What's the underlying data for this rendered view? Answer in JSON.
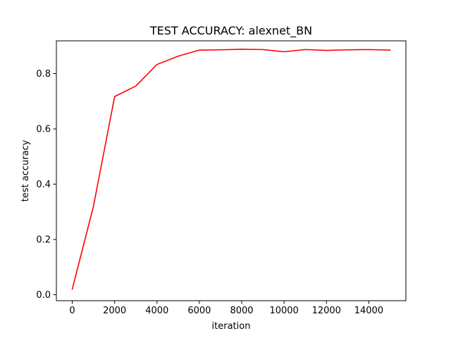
{
  "chart_data": {
    "type": "line",
    "title": "TEST ACCURACY: alexnet_BN",
    "xlabel": "iteration",
    "ylabel": "test accuracy",
    "xlim": [
      -750,
      15750
    ],
    "ylim": [
      -0.0215,
      0.9185
    ],
    "xticks": [
      0,
      2000,
      4000,
      6000,
      8000,
      10000,
      12000,
      14000
    ],
    "yticks": [
      0.0,
      0.2,
      0.4,
      0.6,
      0.8
    ],
    "xtick_labels": [
      "0",
      "2000",
      "4000",
      "6000",
      "8000",
      "10000",
      "12000",
      "14000"
    ],
    "ytick_labels": [
      "0.0",
      "0.2",
      "0.4",
      "0.6",
      "0.8"
    ],
    "grid": false,
    "series": [
      {
        "color": "#ff0000",
        "x": [
          0,
          1000,
          2000,
          3000,
          4000,
          5000,
          6000,
          7000,
          8000,
          9000,
          10000,
          11000,
          12000,
          13000,
          14000,
          15000
        ],
        "y": [
          0.02,
          0.32,
          0.717,
          0.755,
          0.833,
          0.863,
          0.885,
          0.886,
          0.888,
          0.887,
          0.879,
          0.887,
          0.884,
          0.886,
          0.887,
          0.885
        ]
      }
    ]
  }
}
